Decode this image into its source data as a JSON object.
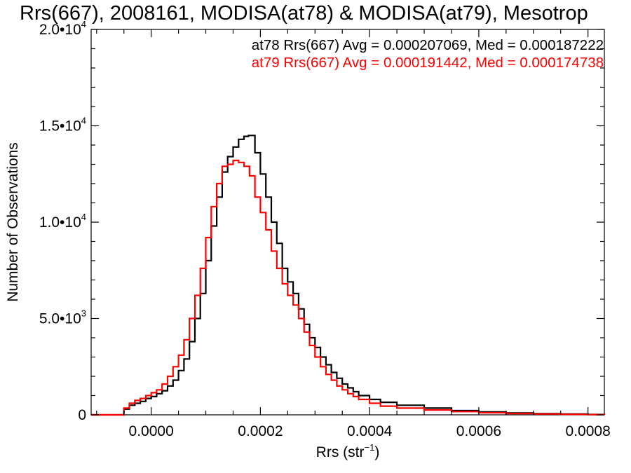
{
  "chart_data": {
    "type": "line",
    "title": "Rrs(667), 2008161, MODISA(at78) & MODISA(at79), Mesotrop",
    "xlabel_base": "Rrs (str",
    "xlabel_sup": "−1",
    "xlabel_close": ")",
    "ylabel": "Number of Observations",
    "xlim": [
      -0.00011,
      0.00083
    ],
    "ylim": [
      0,
      20000
    ],
    "x_ticks": [
      {
        "value": 0.0,
        "label": "0.0000"
      },
      {
        "value": 0.0002,
        "label": "0.0002"
      },
      {
        "value": 0.0004,
        "label": "0.0004"
      },
      {
        "value": 0.0006,
        "label": "0.0006"
      },
      {
        "value": 0.0008,
        "label": "0.0008"
      }
    ],
    "y_ticks": [
      {
        "value": 0,
        "mant": "0",
        "exp": ""
      },
      {
        "value": 5000,
        "mant": "5.0•10",
        "exp": "3"
      },
      {
        "value": 10000,
        "mant": "1.0•10",
        "exp": "4"
      },
      {
        "value": 15000,
        "mant": "1.5•10",
        "exp": "4"
      },
      {
        "value": 20000,
        "mant": "2.0•10",
        "exp": "4"
      }
    ],
    "annotations": [
      {
        "text": "at78 Rrs(667) Avg = 0.000207069, Med = 0.000187222",
        "color": "#000000"
      },
      {
        "text": "at79 Rrs(667) Avg = 0.000191442, Med = 0.000174738",
        "color": "#ff0000"
      }
    ],
    "series": [
      {
        "color": "#000000",
        "x": [
          -0.00011,
          -6e-05,
          -5e-05,
          -4e-05,
          -3e-05,
          -2e-05,
          -1e-05,
          0.0,
          1e-05,
          2e-05,
          3e-05,
          4e-05,
          5e-05,
          6e-05,
          7e-05,
          8e-05,
          9e-05,
          0.0001,
          0.00011,
          0.00012,
          0.00013,
          0.00014,
          0.00015,
          0.00016,
          0.00017,
          0.000178,
          0.00019,
          0.0002,
          0.00021,
          0.00022,
          0.00023,
          0.00024,
          0.00025,
          0.00026,
          0.00027,
          0.00028,
          0.00029,
          0.0003,
          0.00031,
          0.00032,
          0.00033,
          0.00034,
          0.00035,
          0.00036,
          0.00037,
          0.00038,
          0.0004,
          0.00042,
          0.00045,
          0.0005,
          0.00055,
          0.0006,
          0.00065,
          0.0007,
          0.00075,
          0.0008,
          0.00083
        ],
        "y": [
          0,
          0,
          300,
          500,
          600,
          700,
          850,
          950,
          1100,
          1250,
          1500,
          1800,
          2300,
          2900,
          3800,
          5000,
          6300,
          8000,
          9800,
          11300,
          12600,
          13400,
          13900,
          14300,
          14450,
          14500,
          13600,
          12500,
          11300,
          10000,
          8900,
          7600,
          6900,
          6300,
          5500,
          4700,
          4000,
          3500,
          3000,
          2600,
          2200,
          1900,
          1600,
          1400,
          1200,
          1000,
          800,
          650,
          500,
          350,
          220,
          150,
          100,
          60,
          40,
          20,
          10
        ]
      },
      {
        "color": "#ff0000",
        "x": [
          -0.00011,
          -6e-05,
          -5e-05,
          -4e-05,
          -3e-05,
          -2e-05,
          -1e-05,
          0.0,
          1e-05,
          2e-05,
          3e-05,
          4e-05,
          5e-05,
          6e-05,
          7e-05,
          8e-05,
          9e-05,
          0.0001,
          0.00011,
          0.00012,
          0.00013,
          0.00014,
          0.00015,
          0.00016,
          0.00017,
          0.00018,
          0.00019,
          0.0002,
          0.00021,
          0.00022,
          0.00023,
          0.00024,
          0.00025,
          0.00026,
          0.00027,
          0.00028,
          0.00029,
          0.0003,
          0.00031,
          0.00032,
          0.00033,
          0.00034,
          0.00035,
          0.00036,
          0.00037,
          0.00038,
          0.0004,
          0.00042,
          0.00045,
          0.0005,
          0.00055,
          0.0006,
          0.00065,
          0.0007,
          0.00075,
          0.0008,
          0.00083
        ],
        "y": [
          0,
          0,
          350,
          600,
          750,
          850,
          1000,
          1150,
          1300,
          1600,
          2000,
          2500,
          3100,
          3900,
          5000,
          6200,
          7600,
          9200,
          10800,
          12000,
          12900,
          13000,
          13200,
          13100,
          12900,
          12400,
          11300,
          10500,
          9600,
          8500,
          7600,
          6800,
          6200,
          5700,
          5000,
          4300,
          3600,
          3000,
          2500,
          2100,
          1800,
          1500,
          1300,
          1100,
          950,
          800,
          600,
          450,
          350,
          250,
          170,
          110,
          70,
          45,
          25,
          12,
          5
        ]
      }
    ]
  }
}
